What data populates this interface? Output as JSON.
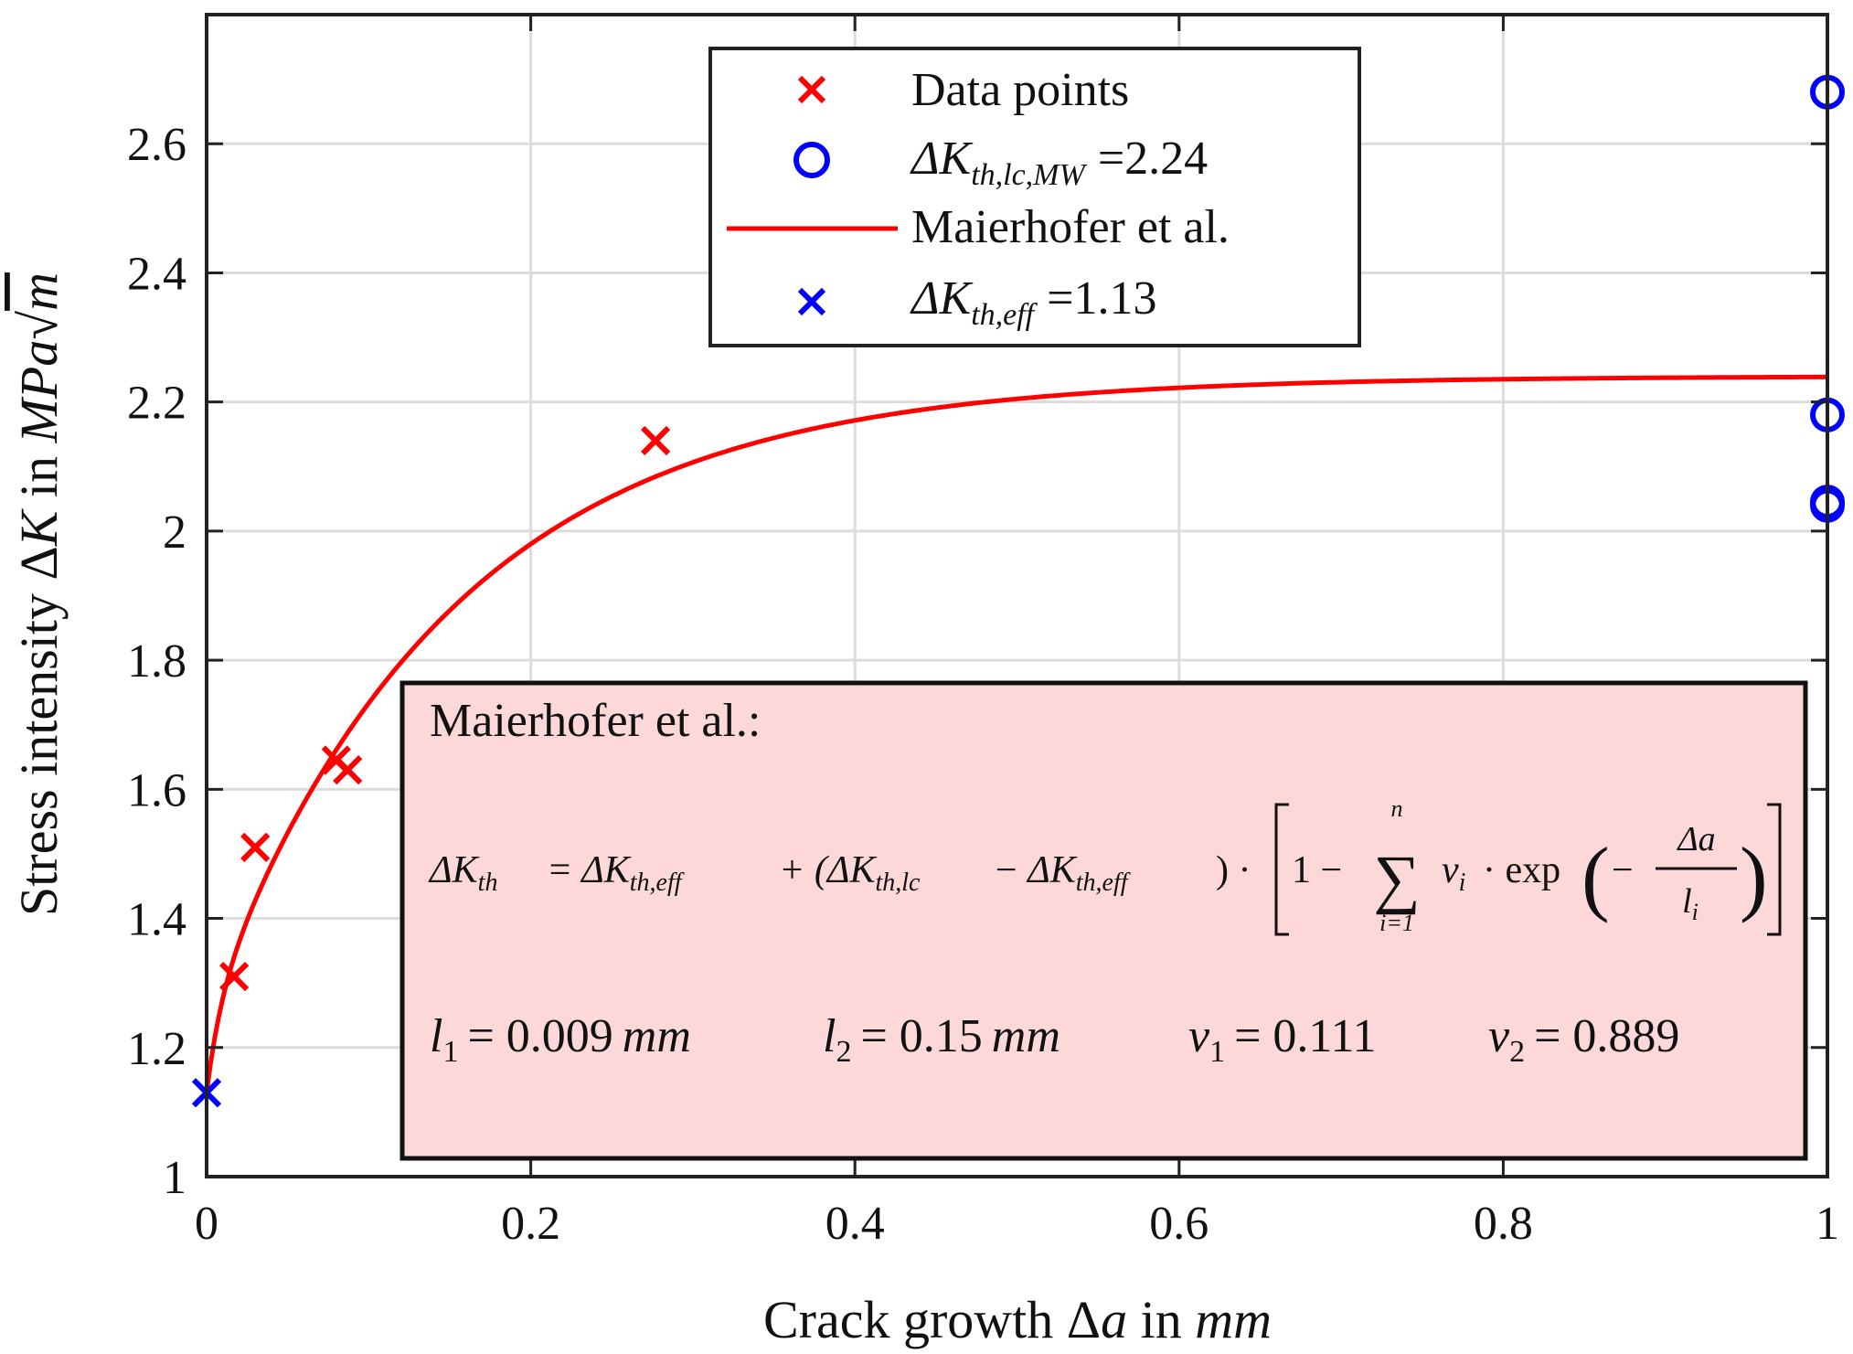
{
  "chart_data": {
    "type": "scatter",
    "xlabel": "Crack growth Δa in mm",
    "ylabel": "Stress intensity ΔK in MPa√m",
    "xlim": [
      0,
      1
    ],
    "ylim": [
      1,
      2.8
    ],
    "grid": true,
    "x_ticks": [
      "0",
      "0.2",
      "0.4",
      "0.6",
      "0.8",
      "1"
    ],
    "y_ticks": [
      "1",
      "1.2",
      "1.4",
      "1.6",
      "1.8",
      "2",
      "2.2",
      "2.4",
      "2.6"
    ],
    "x_tick_values": [
      0,
      0.2,
      0.4,
      0.6,
      0.8,
      1
    ],
    "y_tick_values": [
      1,
      1.2,
      1.4,
      1.6,
      1.8,
      2,
      2.2,
      2.4,
      2.6
    ],
    "legend_position": "top-center",
    "series": [
      {
        "name": "Data points",
        "marker": "x",
        "color": "#ff0000",
        "points": [
          {
            "x": 0.017,
            "y": 1.31
          },
          {
            "x": 0.03,
            "y": 1.51
          },
          {
            "x": 0.08,
            "y": 1.645
          },
          {
            "x": 0.087,
            "y": 1.63
          },
          {
            "x": 0.277,
            "y": 2.14
          }
        ]
      },
      {
        "name": "ΔK_th,lc,MW =2.24",
        "marker": "o",
        "color": "#0000ff",
        "points": [
          {
            "x": 1,
            "y": 2.68
          },
          {
            "x": 1,
            "y": 2.18
          },
          {
            "x": 1,
            "y": 2.045
          },
          {
            "x": 1,
            "y": 2.04
          }
        ]
      },
      {
        "name": "Maierhofer et al.",
        "type": "line",
        "color": "#ff0000",
        "model": {
          "dK_eff": 1.13,
          "dK_lc": 2.24,
          "l": [
            0.009,
            0.15
          ],
          "nu": [
            0.111,
            0.889
          ]
        }
      },
      {
        "name": "ΔK_th,eff =1.13",
        "marker": "x",
        "color": "#0000ff",
        "points": [
          {
            "x": 0,
            "y": 1.13
          }
        ]
      }
    ],
    "legend": {
      "entries": [
        {
          "label": "Data points"
        },
        {
          "label_main": "ΔK",
          "label_sub": "th,lc,MW",
          "label_value": "=2.24"
        },
        {
          "label": "Maierhofer et al."
        },
        {
          "label_main": "ΔK",
          "label_sub": "th,eff",
          "label_value": "=1.13"
        }
      ]
    },
    "annotation": {
      "title": "Maierhofer et al.:",
      "formula_lhs": "ΔK",
      "formula_lhs_sub": "th",
      "formula_rhs_1": "= ΔK",
      "formula_rhs_1_sub": "th,eff",
      "formula_rhs_2": "+ (ΔK",
      "formula_rhs_2_sub": "th,lc",
      "formula_rhs_3": "− ΔK",
      "formula_rhs_3_sub": "th,eff",
      "formula_rhs_4": ") ·",
      "formula_bracket_1": "1 −",
      "formula_sum_top": "n",
      "formula_sum_bottom": "i=1",
      "formula_nu": "ν",
      "formula_nu_sub": "i",
      "formula_exp": "· exp",
      "formula_frac_num": "Δa",
      "formula_frac_den": "l",
      "formula_frac_den_sub": "i",
      "params": [
        {
          "sym": "l",
          "sub": "1",
          "val": "= 0.009",
          "unit": "mm"
        },
        {
          "sym": "l",
          "sub": "2",
          "val": "= 0.15",
          "unit": "mm"
        },
        {
          "sym": "ν",
          "sub": "1",
          "val": "= 0.111",
          "unit": ""
        },
        {
          "sym": "ν",
          "sub": "2",
          "val": "= 0.889",
          "unit": ""
        }
      ]
    }
  }
}
